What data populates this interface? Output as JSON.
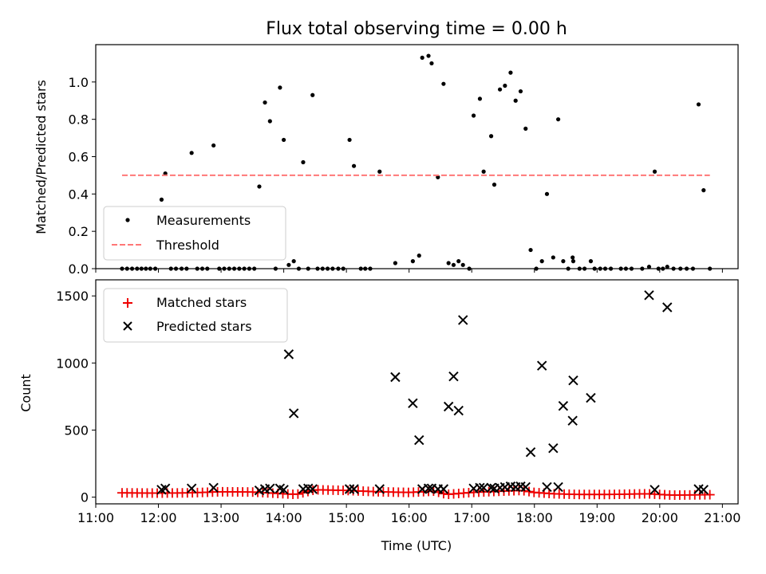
{
  "chart_data": [
    {
      "type": "scatter",
      "title": "Flux total observing time = 0.00 h",
      "xlabel": "",
      "ylabel": "Matched/Predicted stars",
      "xlim": [
        11.0,
        21.25
      ],
      "ylim": [
        0,
        1.2
      ],
      "x_tick_values": [
        11,
        12,
        13,
        14,
        15,
        16,
        17,
        18,
        19,
        20,
        21
      ],
      "y_ticks": [
        "0.0",
        "0.2",
        "0.4",
        "0.6",
        "0.8",
        "1.0"
      ],
      "y_tick_values": [
        0.0,
        0.2,
        0.4,
        0.6,
        0.8,
        1.0
      ],
      "grid": false,
      "legend_position": "lower-left",
      "series": [
        {
          "name": "Measurements",
          "kind": "scatter",
          "color": "#000000",
          "points": [
            [
              11.42,
              0
            ],
            [
              11.5,
              0
            ],
            [
              11.58,
              0
            ],
            [
              11.66,
              0
            ],
            [
              11.73,
              0
            ],
            [
              11.8,
              0
            ],
            [
              11.87,
              0
            ],
            [
              11.95,
              0
            ],
            [
              12.05,
              0.37
            ],
            [
              12.11,
              0.51
            ],
            [
              12.2,
              0
            ],
            [
              12.28,
              0
            ],
            [
              12.37,
              0
            ],
            [
              12.45,
              0
            ],
            [
              12.53,
              0.62
            ],
            [
              12.62,
              0
            ],
            [
              12.7,
              0
            ],
            [
              12.78,
              0
            ],
            [
              12.88,
              0.66
            ],
            [
              12.97,
              0
            ],
            [
              13.05,
              0
            ],
            [
              13.13,
              0
            ],
            [
              13.21,
              0
            ],
            [
              13.29,
              0
            ],
            [
              13.37,
              0
            ],
            [
              13.45,
              0
            ],
            [
              13.53,
              0
            ],
            [
              13.61,
              0.44
            ],
            [
              13.7,
              0.89
            ],
            [
              13.78,
              0.79
            ],
            [
              13.87,
              0
            ],
            [
              13.94,
              0.97
            ],
            [
              14.0,
              0.69
            ],
            [
              14.08,
              0.02
            ],
            [
              14.16,
              0.04
            ],
            [
              14.24,
              0
            ],
            [
              14.31,
              0.57
            ],
            [
              14.39,
              0
            ],
            [
              14.46,
              0.93
            ],
            [
              14.54,
              0
            ],
            [
              14.62,
              0
            ],
            [
              14.7,
              0
            ],
            [
              14.78,
              0
            ],
            [
              14.87,
              0
            ],
            [
              14.95,
              0
            ],
            [
              15.05,
              0.69
            ],
            [
              15.12,
              0.55
            ],
            [
              15.23,
              0
            ],
            [
              15.3,
              0
            ],
            [
              15.38,
              0
            ],
            [
              15.53,
              0.52
            ],
            [
              15.78,
              0.03
            ],
            [
              16.06,
              0.04
            ],
            [
              16.16,
              0.07
            ],
            [
              16.21,
              1.13
            ],
            [
              16.31,
              1.14
            ],
            [
              16.36,
              1.1
            ],
            [
              16.46,
              0.49
            ],
            [
              16.55,
              0.99
            ],
            [
              16.63,
              0.03
            ],
            [
              16.71,
              0.02
            ],
            [
              16.79,
              0.04
            ],
            [
              16.86,
              0.02
            ],
            [
              16.96,
              0
            ],
            [
              17.03,
              0.82
            ],
            [
              17.13,
              0.91
            ],
            [
              17.19,
              0.52
            ],
            [
              17.31,
              0.71
            ],
            [
              17.36,
              0.45
            ],
            [
              17.45,
              0.96
            ],
            [
              17.53,
              0.98
            ],
            [
              17.62,
              1.05
            ],
            [
              17.7,
              0.9
            ],
            [
              17.78,
              0.95
            ],
            [
              17.86,
              0.75
            ],
            [
              17.94,
              0.1
            ],
            [
              18.03,
              0
            ],
            [
              18.12,
              0.04
            ],
            [
              18.2,
              0.4
            ],
            [
              18.3,
              0.06
            ],
            [
              18.38,
              0.8
            ],
            [
              18.46,
              0.04
            ],
            [
              18.54,
              0
            ],
            [
              18.61,
              0.06
            ],
            [
              18.62,
              0.04
            ],
            [
              18.72,
              0
            ],
            [
              18.8,
              0
            ],
            [
              18.9,
              0.04
            ],
            [
              18.96,
              0
            ],
            [
              19.05,
              0
            ],
            [
              19.13,
              0
            ],
            [
              19.22,
              0
            ],
            [
              19.38,
              0
            ],
            [
              19.46,
              0
            ],
            [
              19.55,
              0
            ],
            [
              19.72,
              0
            ],
            [
              19.83,
              0.01
            ],
            [
              19.92,
              0.52
            ],
            [
              19.98,
              0
            ],
            [
              20.05,
              0
            ],
            [
              20.12,
              0.01
            ],
            [
              20.22,
              0
            ],
            [
              20.33,
              0
            ],
            [
              20.43,
              0
            ],
            [
              20.53,
              0
            ],
            [
              20.62,
              0.88
            ],
            [
              20.7,
              0.42
            ],
            [
              20.8,
              0
            ]
          ]
        },
        {
          "name": "Threshold",
          "kind": "line",
          "dashed": true,
          "color": "#ff7777",
          "x": [
            11.42,
            20.8
          ],
          "y": [
            0.5,
            0.5
          ]
        }
      ]
    },
    {
      "type": "scatter",
      "title": "",
      "xlabel": "Time (UTC)",
      "ylabel": "Count",
      "xlim": [
        11.0,
        21.25
      ],
      "ylim": [
        -50,
        1620
      ],
      "x_ticks": [
        "11:00",
        "12:00",
        "13:00",
        "14:00",
        "15:00",
        "16:00",
        "17:00",
        "18:00",
        "19:00",
        "20:00",
        "21:00"
      ],
      "x_tick_values": [
        11,
        12,
        13,
        14,
        15,
        16,
        17,
        18,
        19,
        20,
        21
      ],
      "y_ticks": [
        "0",
        "500",
        "1000",
        "1500"
      ],
      "y_tick_values": [
        0,
        500,
        1000,
        1500
      ],
      "grid": false,
      "legend_position": "upper-left",
      "series": [
        {
          "name": "Matched stars",
          "kind": "plus",
          "color": "#ee0000",
          "matched_x_start": 11.42,
          "matched_x_end": 20.8,
          "matched_count": 118,
          "matched_profile": [
            [
              11.42,
              32
            ],
            [
              12.0,
              30
            ],
            [
              12.5,
              32
            ],
            [
              13.0,
              40
            ],
            [
              13.5,
              38
            ],
            [
              14.0,
              25
            ],
            [
              14.2,
              20
            ],
            [
              14.5,
              55
            ],
            [
              15.0,
              50
            ],
            [
              15.5,
              40
            ],
            [
              16.0,
              35
            ],
            [
              16.4,
              45
            ],
            [
              16.6,
              20
            ],
            [
              17.0,
              35
            ],
            [
              17.5,
              45
            ],
            [
              17.8,
              50
            ],
            [
              18.0,
              35
            ],
            [
              18.3,
              25
            ],
            [
              18.7,
              20
            ],
            [
              19.2,
              20
            ],
            [
              19.8,
              25
            ],
            [
              20.2,
              15
            ],
            [
              20.8,
              18
            ]
          ]
        },
        {
          "name": "Predicted stars",
          "kind": "x",
          "color": "#000000",
          "points": [
            [
              12.05,
              55
            ],
            [
              12.11,
              65
            ],
            [
              12.53,
              65
            ],
            [
              12.88,
              70
            ],
            [
              13.61,
              50
            ],
            [
              13.7,
              60
            ],
            [
              13.78,
              65
            ],
            [
              13.94,
              65
            ],
            [
              14.0,
              55
            ],
            [
              14.08,
              1065
            ],
            [
              14.16,
              625
            ],
            [
              14.31,
              60
            ],
            [
              14.39,
              65
            ],
            [
              14.46,
              60
            ],
            [
              15.05,
              60
            ],
            [
              15.12,
              60
            ],
            [
              15.53,
              60
            ],
            [
              15.78,
              895
            ],
            [
              16.06,
              700
            ],
            [
              16.16,
              425
            ],
            [
              16.21,
              60
            ],
            [
              16.31,
              65
            ],
            [
              16.36,
              65
            ],
            [
              16.46,
              60
            ],
            [
              16.55,
              60
            ],
            [
              16.63,
              675
            ],
            [
              16.71,
              900
            ],
            [
              16.79,
              645
            ],
            [
              16.86,
              1320
            ],
            [
              17.03,
              65
            ],
            [
              17.13,
              70
            ],
            [
              17.19,
              70
            ],
            [
              17.31,
              70
            ],
            [
              17.36,
              65
            ],
            [
              17.45,
              70
            ],
            [
              17.53,
              75
            ],
            [
              17.62,
              80
            ],
            [
              17.7,
              75
            ],
            [
              17.78,
              80
            ],
            [
              17.86,
              75
            ],
            [
              17.94,
              335
            ],
            [
              18.12,
              980
            ],
            [
              18.2,
              75
            ],
            [
              18.3,
              365
            ],
            [
              18.38,
              75
            ],
            [
              18.46,
              680
            ],
            [
              18.61,
              570
            ],
            [
              18.62,
              870
            ],
            [
              18.9,
              740
            ],
            [
              19.83,
              1505
            ],
            [
              19.92,
              55
            ],
            [
              20.12,
              1415
            ],
            [
              20.62,
              60
            ],
            [
              20.7,
              55
            ]
          ]
        }
      ]
    }
  ]
}
